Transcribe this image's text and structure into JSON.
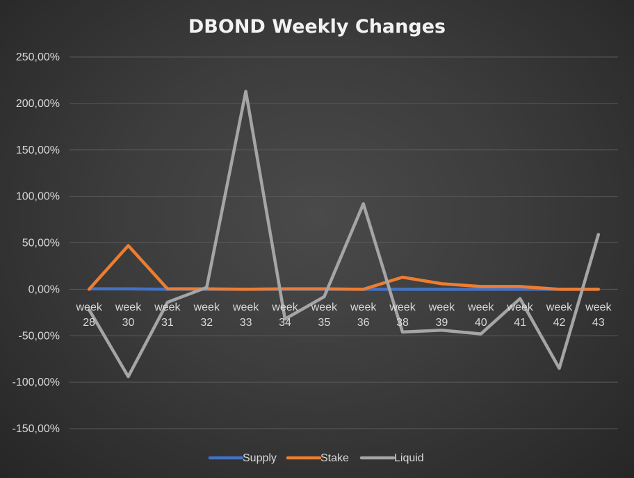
{
  "chart_data": {
    "type": "line",
    "title": "DBOND Weekly Changes",
    "xlabel": "",
    "ylabel": "",
    "ylim": [
      -150,
      250
    ],
    "y_ticks": [
      250,
      200,
      150,
      100,
      50,
      0,
      -50,
      -100,
      -150
    ],
    "y_tick_labels": [
      "250,00%",
      "200,00%",
      "150,00%",
      "100,00%",
      "50,00%",
      "0,00%",
      "-50,00%",
      "-100,00%",
      "-150,00%"
    ],
    "categories": [
      [
        "week",
        "28"
      ],
      [
        "week",
        "30"
      ],
      [
        "week",
        "31"
      ],
      [
        "week",
        "32"
      ],
      [
        "week",
        "33"
      ],
      [
        "week",
        "34"
      ],
      [
        "week",
        "35"
      ],
      [
        "week",
        "36"
      ],
      [
        "week",
        "38"
      ],
      [
        "week",
        "39"
      ],
      [
        "week",
        "40"
      ],
      [
        "week",
        "41"
      ],
      [
        "week",
        "42"
      ],
      [
        "week",
        "43"
      ]
    ],
    "grid": true,
    "legend_position": "bottom",
    "series": [
      {
        "name": "Supply",
        "color": "#4472c4",
        "values": [
          0.5,
          0.5,
          0,
          0,
          0,
          0,
          0,
          0,
          0,
          0,
          0,
          0,
          0,
          0
        ]
      },
      {
        "name": "Stake",
        "color": "#ed7d31",
        "values": [
          0,
          47,
          0.5,
          0.5,
          0,
          0.5,
          0.5,
          0,
          13,
          6,
          3,
          3,
          0,
          0
        ]
      },
      {
        "name": "Liquid",
        "color": "#a5a5a5",
        "values": [
          -22,
          -94,
          -14,
          2,
          213,
          -32,
          -8,
          92,
          -46,
          -44,
          -48,
          -10,
          -85,
          59
        ]
      }
    ]
  }
}
